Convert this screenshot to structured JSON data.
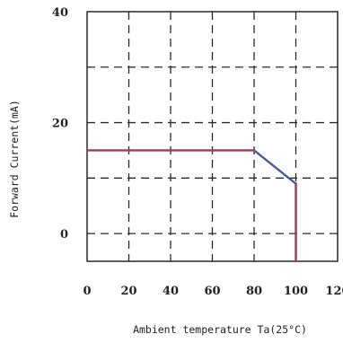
{
  "chart_data": {
    "type": "line",
    "title": "",
    "xlabel": "Ambient temperature Ta(25°C)",
    "ylabel": "Forward Current(mA)",
    "xlim": [
      0,
      120
    ],
    "ylim": [
      -5,
      40
    ],
    "grid": true,
    "x_ticks": [
      0,
      20,
      40,
      60,
      80,
      100,
      120
    ],
    "x_tick_labels": [
      "0",
      "20",
      "40",
      "60",
      "80",
      "100",
      "120"
    ],
    "y_ticks": [
      0,
      20,
      40
    ],
    "y_tick_labels": [
      "0",
      "20",
      "40"
    ],
    "series": [
      {
        "x": [
          0,
          80,
          100,
          100
        ],
        "y": [
          15,
          15,
          9,
          -5
        ],
        "color": "#a03a54"
      }
    ]
  }
}
